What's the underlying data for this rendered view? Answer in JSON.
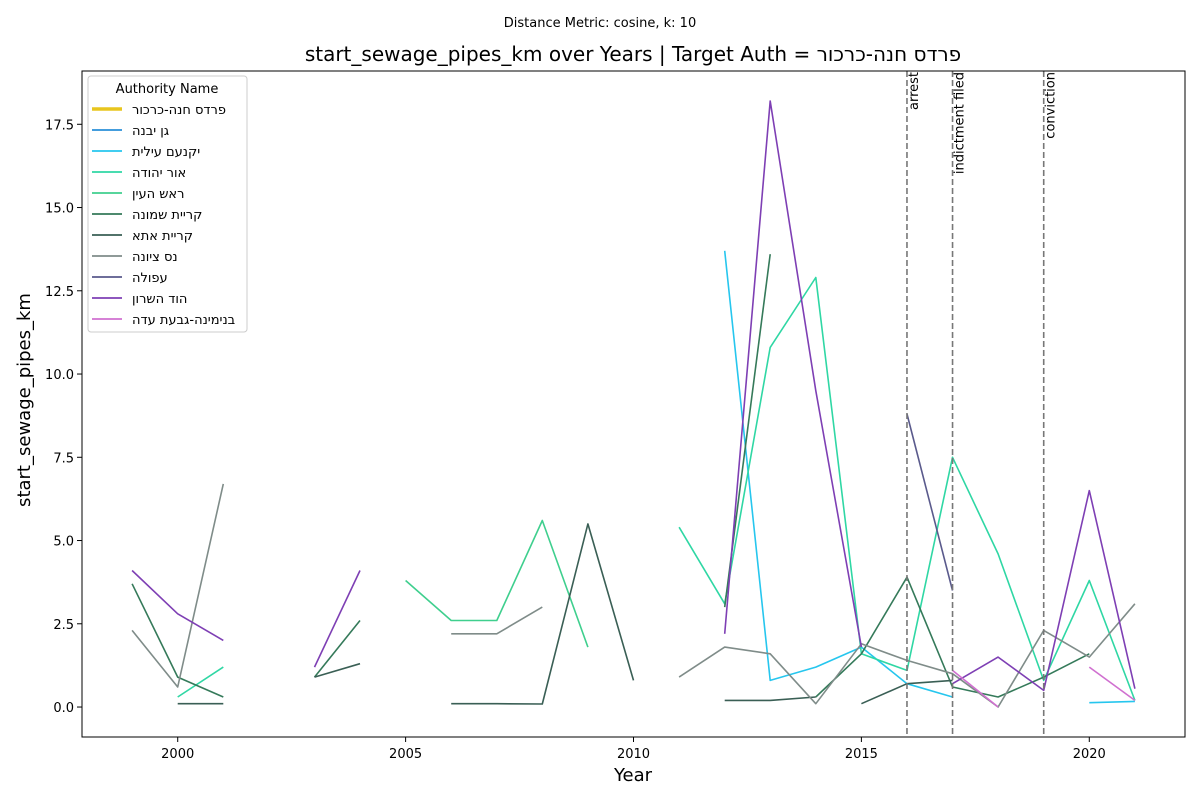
{
  "suptitle": "Distance Metric: cosine, k: 10",
  "chart_data": {
    "type": "line",
    "title": "start_sewage_pipes_km over Years | Target Auth = פרדס חנה-כרכור",
    "xlabel": "Year",
    "ylabel": "start_sewage_pipes_km",
    "xlim": [
      1997.9,
      2022.1
    ],
    "ylim": [
      -0.9,
      19.1
    ],
    "xticks": [
      2000,
      2005,
      2010,
      2015,
      2020
    ],
    "yticks": [
      0.0,
      2.5,
      5.0,
      7.5,
      10.0,
      12.5,
      15.0,
      17.5
    ],
    "grid": false,
    "legend": {
      "title": "Authority Name",
      "placement": "top-left"
    },
    "events": [
      {
        "x": 2016,
        "label": "arrest"
      },
      {
        "x": 2017,
        "label": "indictment filed"
      },
      {
        "x": 2019,
        "label": "conviction"
      }
    ],
    "series": [
      {
        "name": "פרדס חנה-כרכור",
        "color": "#e8c51e",
        "target": true,
        "points": []
      },
      {
        "name": "גן יבנה",
        "color": "#2a8fd8",
        "points": []
      },
      {
        "name": "יקנעם עילית",
        "color": "#26c6ee",
        "points": [
          [
            2012,
            13.7
          ],
          [
            2013,
            0.8
          ],
          [
            2014,
            1.2
          ],
          [
            2015,
            1.8
          ],
          [
            2016,
            0.7
          ],
          [
            2017,
            0.3
          ],
          [
            null,
            null
          ],
          [
            2020,
            0.13
          ],
          [
            2021,
            0.17
          ]
        ]
      },
      {
        "name": "אור יהודה",
        "color": "#2fd7a4",
        "points": [
          [
            2000,
            0.3
          ],
          [
            2001,
            1.2
          ],
          [
            null,
            null
          ],
          [
            2011,
            5.4
          ],
          [
            2012,
            3.1
          ],
          [
            2013,
            10.8
          ],
          [
            2014,
            12.9
          ],
          [
            2015,
            1.6
          ],
          [
            2016,
            1.1
          ],
          [
            2017,
            7.5
          ],
          [
            2018,
            4.6
          ],
          [
            2019,
            0.8
          ],
          [
            2020,
            3.8
          ],
          [
            2021,
            0.2
          ]
        ]
      },
      {
        "name": "ראש העין",
        "color": "#3fcf8e",
        "points": [
          [
            2005,
            3.8
          ],
          [
            2006,
            2.6
          ],
          [
            2007,
            2.6
          ],
          [
            2008,
            5.6
          ],
          [
            2009,
            1.8
          ]
        ]
      },
      {
        "name": "קריית שמונה",
        "color": "#357a5a",
        "points": [
          [
            1999,
            3.7
          ],
          [
            2000,
            0.9
          ],
          [
            2001,
            0.3
          ],
          [
            null,
            null
          ],
          [
            2003,
            0.9
          ],
          [
            2004,
            2.6
          ],
          [
            null,
            null
          ],
          [
            2012,
            3.0
          ],
          [
            2013,
            13.6
          ],
          [
            null,
            null
          ],
          [
            2014,
            0.3
          ],
          [
            2015,
            1.6
          ],
          [
            2016,
            3.9
          ],
          [
            2017,
            0.6
          ],
          [
            2018,
            0.3
          ],
          [
            2019,
            0.9
          ],
          [
            2020,
            1.6
          ]
        ]
      },
      {
        "name": "קריית אתא",
        "color": "#3a5f55",
        "points": [
          [
            2000,
            0.1
          ],
          [
            2001,
            0.1
          ],
          [
            null,
            null
          ],
          [
            2003,
            0.9
          ],
          [
            2004,
            1.3
          ],
          [
            null,
            null
          ],
          [
            2006,
            0.1
          ],
          [
            2007,
            0.1
          ],
          [
            2008,
            0.09
          ],
          [
            2009,
            5.5
          ],
          [
            2010,
            0.8
          ],
          [
            null,
            null
          ],
          [
            2012,
            0.2
          ],
          [
            2013,
            0.2
          ],
          [
            2014,
            0.3
          ],
          [
            null,
            null
          ],
          [
            2015,
            0.1
          ],
          [
            2016,
            0.7
          ],
          [
            2017,
            0.8
          ]
        ]
      },
      {
        "name": "נס ציונה",
        "color": "#7f8c89",
        "points": [
          [
            1999,
            2.3
          ],
          [
            2000,
            0.6
          ],
          [
            2001,
            6.7
          ],
          [
            null,
            null
          ],
          [
            2006,
            2.2
          ],
          [
            2007,
            2.2
          ],
          [
            2008,
            3.0
          ],
          [
            null,
            null
          ],
          [
            2011,
            0.9
          ],
          [
            2012,
            1.8
          ],
          [
            2013,
            1.6
          ],
          [
            2014,
            0.1
          ],
          [
            2015,
            1.9
          ],
          [
            2016,
            1.4
          ],
          [
            2017,
            1.0
          ],
          [
            2018,
            0.0
          ],
          [
            2019,
            2.3
          ],
          [
            2020,
            1.5
          ],
          [
            2021,
            3.1
          ]
        ]
      },
      {
        "name": "עפולה",
        "color": "#5a5a8c",
        "points": [
          [
            2016,
            8.8
          ],
          [
            2017,
            3.5
          ]
        ]
      },
      {
        "name": "הוד השרון",
        "color": "#7e3fb4",
        "points": [
          [
            1999,
            4.1
          ],
          [
            2000,
            2.8
          ],
          [
            2001,
            2.0
          ],
          [
            null,
            null
          ],
          [
            2003,
            1.2
          ],
          [
            2004,
            4.1
          ],
          [
            null,
            null
          ],
          [
            2012,
            2.2
          ],
          [
            2013,
            18.2
          ],
          [
            2014,
            9.5
          ],
          [
            2015,
            1.8
          ],
          [
            null,
            null
          ],
          [
            2017,
            0.7
          ],
          [
            2018,
            1.5
          ],
          [
            2019,
            0.5
          ],
          [
            2020,
            6.5
          ],
          [
            2021,
            0.55
          ]
        ]
      },
      {
        "name": "בנימינה-גבעת עדה",
        "color": "#d070d0",
        "points": [
          [
            2017,
            1.1
          ],
          [
            2018,
            0.0
          ],
          [
            null,
            null
          ],
          [
            2020,
            1.2
          ],
          [
            2021,
            0.2
          ]
        ]
      }
    ]
  }
}
